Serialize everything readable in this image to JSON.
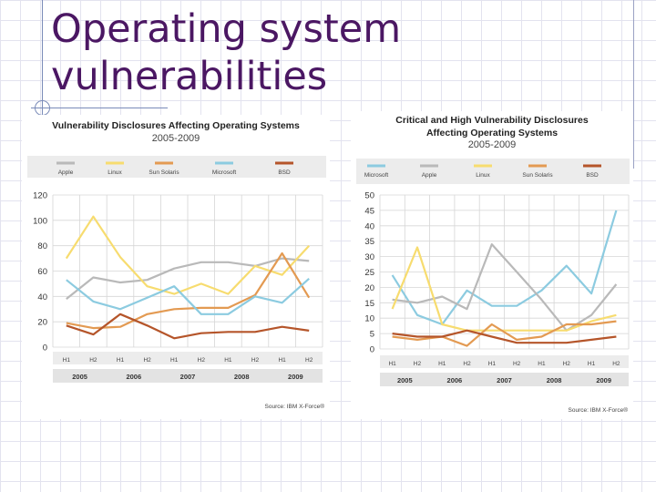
{
  "slide": {
    "title_line1": "Operating system",
    "title_line2": "vulnerabilities"
  },
  "chart_data": [
    {
      "type": "line",
      "title": "Vulnerability Disclosures Affecting Operating Systems",
      "subtitle": "2005-2009",
      "source": "Source: IBM X-Force®",
      "categories": [
        "H1",
        "H2",
        "H1",
        "H2",
        "H1",
        "H2",
        "H1",
        "H2",
        "H1",
        "H2"
      ],
      "years": [
        "2005",
        "2006",
        "2007",
        "2008",
        "2009"
      ],
      "ylim": [
        0,
        120
      ],
      "yticks": [
        0,
        20,
        40,
        60,
        80,
        100,
        120
      ],
      "series": [
        {
          "name": "Apple",
          "color": "#b9b9b9",
          "values": [
            38,
            55,
            51,
            53,
            62,
            67,
            67,
            64,
            70,
            68
          ]
        },
        {
          "name": "Linux",
          "color": "#f7dc6f",
          "values": [
            70,
            103,
            71,
            48,
            42,
            50,
            42,
            64,
            57,
            80
          ]
        },
        {
          "name": "Sun Solaris",
          "color": "#e39a52",
          "values": [
            19,
            15,
            16,
            26,
            30,
            31,
            31,
            41,
            74,
            39
          ]
        },
        {
          "name": "Microsoft",
          "color": "#8ccbe0",
          "values": [
            53,
            36,
            30,
            39,
            48,
            26,
            26,
            40,
            35,
            54
          ]
        },
        {
          "name": "BSD",
          "color": "#b5552a",
          "values": [
            17,
            10,
            26,
            17,
            7,
            11,
            12,
            12,
            16,
            13
          ]
        }
      ]
    },
    {
      "type": "line",
      "title": "Critical and High Vulnerability Disclosures",
      "title_line2": "Affecting Operating Systems",
      "subtitle": "2005-2009",
      "source": "Source: IBM X-Force®",
      "categories": [
        "H1",
        "H2",
        "H1",
        "H2",
        "H1",
        "H2",
        "H1",
        "H2",
        "H1",
        "H2"
      ],
      "years": [
        "2005",
        "2006",
        "2007",
        "2008",
        "2009"
      ],
      "ylim": [
        0,
        50
      ],
      "yticks": [
        0,
        5,
        10,
        15,
        20,
        25,
        30,
        35,
        40,
        45,
        50
      ],
      "series": [
        {
          "name": "Microsoft",
          "color": "#8ccbe0",
          "values": [
            24,
            11,
            8,
            19,
            14,
            14,
            19,
            27,
            18,
            45
          ]
        },
        {
          "name": "Apple",
          "color": "#b9b9b9",
          "values": [
            16,
            15,
            17,
            13,
            34,
            25,
            16,
            6,
            11,
            21
          ]
        },
        {
          "name": "Linux",
          "color": "#f7dc6f",
          "values": [
            13,
            33,
            8,
            6,
            6,
            6,
            6,
            6,
            9,
            11
          ]
        },
        {
          "name": "Sun Solaris",
          "color": "#e39a52",
          "values": [
            4,
            3,
            4,
            1,
            8,
            3,
            4,
            8,
            8,
            9
          ]
        },
        {
          "name": "BSD",
          "color": "#b5552a",
          "values": [
            5,
            4,
            4,
            6,
            4,
            2,
            2,
            2,
            3,
            4
          ]
        }
      ]
    }
  ]
}
